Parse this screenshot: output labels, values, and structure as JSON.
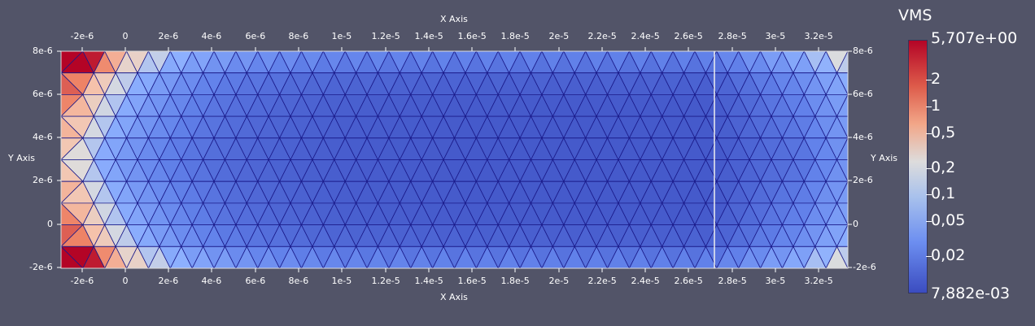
{
  "plot": {
    "x_axis_title": "X Axis",
    "y_axis_title": "Y Axis",
    "x_ticks": [
      "-2e-6",
      "0",
      "2e-6",
      "4e-6",
      "6e-6",
      "8e-6",
      "1e-5",
      "1.2e-5",
      "1.4e-5",
      "1.6e-5",
      "1.8e-5",
      "2e-5",
      "2.2e-5",
      "2.4e-5",
      "2.6e-5",
      "2.8e-5",
      "3e-5",
      "3.2e-5"
    ],
    "y_ticks": [
      "8e-6",
      "6e-6",
      "4e-6",
      "2e-6",
      "0",
      "-2e-6"
    ],
    "domain_x": [
      -3e-06,
      3.35e-05
    ],
    "domain_y": [
      -2e-06,
      8e-06
    ],
    "log_scale": true
  },
  "colorbar": {
    "title": "VMS",
    "max_label": "5,707e+00",
    "min_label": "7,882e-03",
    "tick_labels": [
      "2",
      "1",
      "0,5",
      "0,2",
      "0,1",
      "0,05",
      "0,02"
    ]
  },
  "colors": {
    "background": "#525468",
    "mesh_edge": "#1a1a8a",
    "low": "#3b4cc0",
    "high": "#b40426"
  }
}
